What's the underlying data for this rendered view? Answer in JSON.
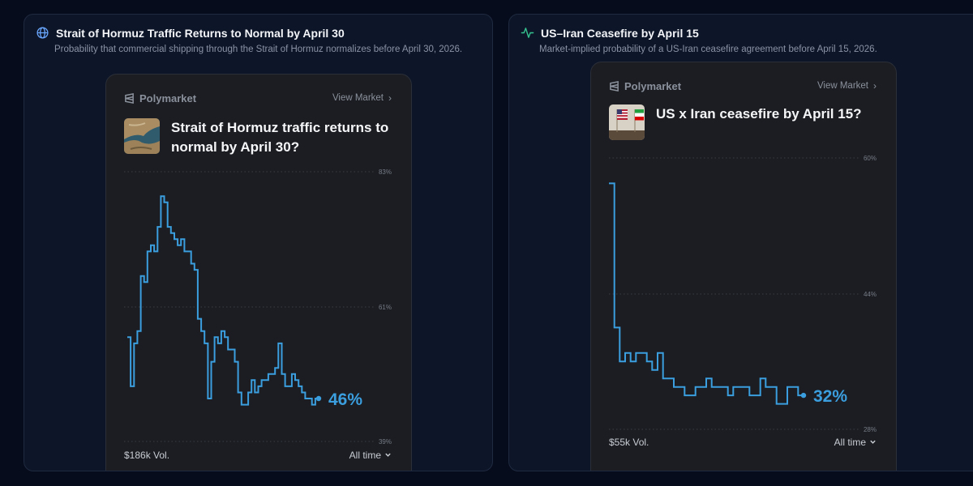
{
  "colors": {
    "accent": "#3b9ede",
    "background": "#070c1c",
    "panel": "#0d1628",
    "card": "#1b1d22",
    "pulse": "#35c28f"
  },
  "panels": [
    {
      "title": "Strait of Hormuz Traffic Returns to Normal by April 30",
      "description": "Probability that commercial shipping through the Strait of Hormuz normalizes before April 30, 2026.",
      "icon": "globe-icon",
      "card": {
        "brand": "Polymarket",
        "view_market": "View Market",
        "question": "Strait of Hormuz traffic returns to normal by April 30?",
        "thumb_icon": "strait-satellite-image",
        "probability": "46%",
        "volume": "$186k Vol.",
        "range": "All time",
        "y_ticks": [
          "83%",
          "61%",
          "39%"
        ]
      }
    },
    {
      "title": "US–Iran Ceasefire by April 15",
      "description": "Market-implied probability of a US-Iran ceasefire agreement before April 15, 2026.",
      "icon": "pulse-icon",
      "card": {
        "brand": "Polymarket",
        "view_market": "View Market",
        "question": "US x Iran ceasefire by April 15?",
        "thumb_icon": "us-iran-flags-image",
        "probability": "32%",
        "volume": "$55k Vol.",
        "range": "All time",
        "y_ticks": [
          "60%",
          "44%",
          "28%"
        ]
      }
    }
  ],
  "chart_data": [
    {
      "type": "line",
      "title": "Strait of Hormuz traffic returns to normal by April 30?",
      "ylim": [
        39,
        83
      ],
      "y_ticks": [
        83,
        61,
        39
      ],
      "grid": true,
      "series": [
        {
          "values": [
            56,
            48,
            55,
            57,
            66,
            65,
            70,
            71,
            70,
            74,
            79,
            78,
            74,
            73,
            72,
            71,
            72,
            70,
            70,
            68,
            67,
            59,
            57,
            55,
            46,
            52,
            56,
            55,
            57,
            56,
            54,
            54,
            52,
            47,
            45,
            45,
            47,
            49,
            47,
            48,
            49,
            49,
            50,
            50,
            51,
            55,
            50,
            48,
            48,
            50,
            49,
            48,
            47,
            46,
            46,
            45,
            46,
            46
          ]
        }
      ]
    },
    {
      "type": "line",
      "title": "US x Iran ceasefire by April 15?",
      "ylim": [
        28,
        60
      ],
      "y_ticks": [
        60,
        44,
        28
      ],
      "grid": true,
      "series": [
        {
          "values": [
            57,
            40,
            36,
            37,
            36,
            37,
            37,
            36,
            35,
            37,
            34,
            34,
            33,
            33,
            32,
            32,
            33,
            33,
            34,
            33,
            33,
            33,
            32,
            33,
            33,
            33,
            32,
            32,
            34,
            33,
            33,
            31,
            31,
            33,
            33,
            32,
            32
          ]
        }
      ]
    }
  ]
}
